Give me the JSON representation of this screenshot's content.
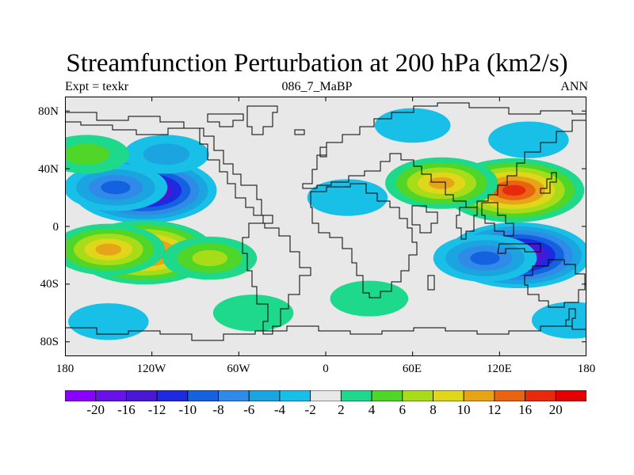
{
  "figure": {
    "title": "Streamfunction Perturbation at 200 hPa (km2/s)",
    "left_string": "Expt = texkr",
    "center_string": "086_7_MaBP",
    "right_string": "ANN"
  },
  "axes": {
    "lat_ticks": [
      "80N",
      "40N",
      "0",
      "40S",
      "80S"
    ],
    "lon_ticks": [
      "180",
      "120W",
      "60W",
      "0",
      "60E",
      "120E",
      "180"
    ]
  },
  "colorbar": {
    "labels": [
      "-20",
      "-16",
      "-12",
      "-10",
      "-8",
      "-6",
      "-4",
      "-2",
      "2",
      "4",
      "6",
      "8",
      "10",
      "12",
      "16",
      "20"
    ],
    "colors": [
      "#8a00ff",
      "#6a10e8",
      "#4a18d4",
      "#1e2ae0",
      "#1462e0",
      "#2f8ae8",
      "#1aa4e0",
      "#18bfe6",
      "#e8e8e8",
      "#1ed98c",
      "#4fd628",
      "#a8dc18",
      "#e0d61a",
      "#e8a418",
      "#e86410",
      "#e82a0c",
      "#e40000"
    ]
  },
  "chart_data": {
    "type": "heatmap",
    "title": "Streamfunction Perturbation at 200 hPa (km2/s)",
    "lon_range": [
      -180,
      180
    ],
    "lat_range": [
      -90,
      90
    ],
    "contour_levels": [
      -20,
      -16,
      -12,
      -10,
      -8,
      -6,
      -4,
      -2,
      2,
      4,
      6,
      8,
      10,
      12,
      16,
      20
    ],
    "features": [
      {
        "lon": -125,
        "lat": 25,
        "peak": -20
      },
      {
        "lon": -145,
        "lat": 27,
        "peak": -8
      },
      {
        "lon": -110,
        "lat": 50,
        "peak": -4
      },
      {
        "lon": 133,
        "lat": -20,
        "peak": -20
      },
      {
        "lon": 110,
        "lat": -22,
        "peak": -8
      },
      {
        "lon": -125,
        "lat": -18,
        "peak": 16
      },
      {
        "lon": -150,
        "lat": -16,
        "peak": 10
      },
      {
        "lon": -80,
        "lat": -22,
        "peak": 6
      },
      {
        "lon": 130,
        "lat": 25,
        "peak": 16
      },
      {
        "lon": 80,
        "lat": 30,
        "peak": 10
      },
      {
        "lon": -165,
        "lat": 50,
        "peak": 4
      },
      {
        "lon": 140,
        "lat": 60,
        "peak": -3
      },
      {
        "lon": 60,
        "lat": 70,
        "peak": -2
      },
      {
        "lon": 30,
        "lat": -50,
        "peak": 2.5
      },
      {
        "lon": -50,
        "lat": -60,
        "peak": 3
      },
      {
        "lon": -150,
        "lat": -66,
        "peak": -3
      },
      {
        "lon": 170,
        "lat": -65,
        "peak": -3
      },
      {
        "lon": 15,
        "lat": 20,
        "peak": -3
      }
    ]
  }
}
